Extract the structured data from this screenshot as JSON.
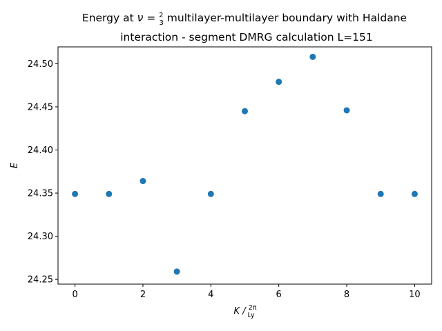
{
  "chart_data": {
    "type": "scatter",
    "title_line1_prefix": "Energy at ",
    "title_symbol": "ν",
    "title_eq": " = ",
    "title_frac_num": "2",
    "title_frac_den": "3",
    "title_line1_suffix": " multilayer-multilayer boundary with Haldane",
    "title_line2": "interaction - segment DMRG calculation L=151",
    "xlabel_main": "K / ",
    "xlabel_frac_num": "2π",
    "xlabel_frac_den": "Ly",
    "ylabel": "E",
    "xlim": [
      -0.5,
      10.5
    ],
    "ylim": [
      24.2445,
      24.5195
    ],
    "xticks": [
      0,
      2,
      4,
      6,
      8,
      10
    ],
    "yticks": [
      24.25,
      24.3,
      24.35,
      24.4,
      24.45,
      24.5
    ],
    "grid": false,
    "marker_color": "#1f77b4",
    "points": [
      {
        "x": 0,
        "y": 24.349
      },
      {
        "x": 1,
        "y": 24.349
      },
      {
        "x": 2,
        "y": 24.364
      },
      {
        "x": 3,
        "y": 24.259
      },
      {
        "x": 4,
        "y": 24.349
      },
      {
        "x": 5,
        "y": 24.445
      },
      {
        "x": 6,
        "y": 24.479
      },
      {
        "x": 7,
        "y": 24.508
      },
      {
        "x": 8,
        "y": 24.446
      },
      {
        "x": 9,
        "y": 24.349
      },
      {
        "x": 10,
        "y": 24.349
      }
    ]
  }
}
